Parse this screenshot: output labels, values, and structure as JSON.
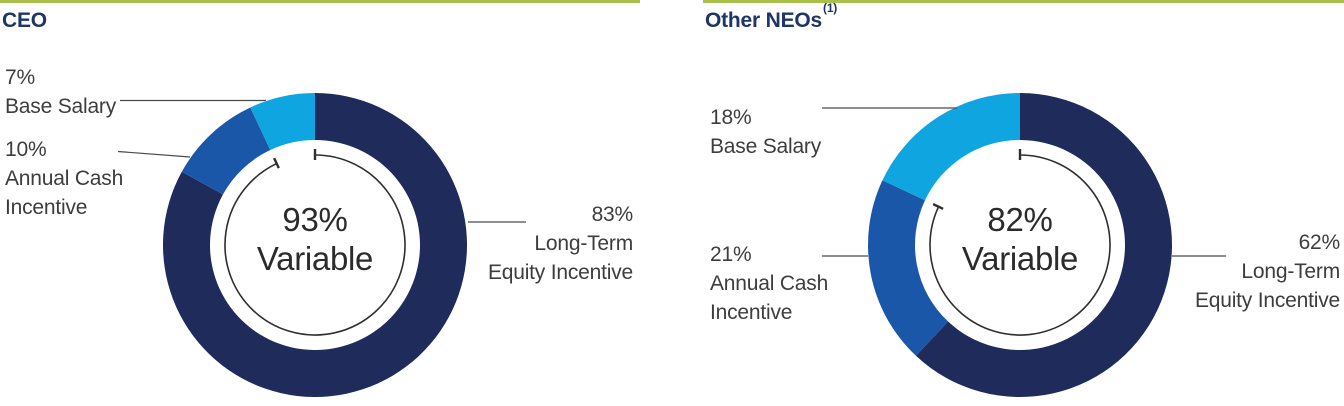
{
  "colors": {
    "rule_green": "#A9C14C",
    "navy": "#1F2B5B",
    "medium_blue": "#1B57A8",
    "light_blue": "#0FA5E0",
    "title_text": "#1E3667",
    "label_text": "#3D3D3D",
    "center_text": "#2B2B2B",
    "leader_line": "#4A4A4A",
    "arc_stroke": "#2E2E2E"
  },
  "chart_data": [
    {
      "type": "pie",
      "variant": "donut",
      "title": "CEO",
      "title_sup": "",
      "legend_position": "callout-labels",
      "slices": [
        {
          "name": "Long-Term Equity Incentive",
          "value": 83,
          "pct_text": "83%",
          "color": "#1F2B5B",
          "line1": "Long-Term",
          "line2": "Equity Incentive"
        },
        {
          "name": "Annual Cash Incentive",
          "value": 10,
          "pct_text": "10%",
          "color": "#1B57A8",
          "line1": "Annual Cash",
          "line2": "Incentive"
        },
        {
          "name": "Base Salary",
          "value": 7,
          "pct_text": "7%",
          "color": "#0FA5E0",
          "line1": "Base Salary",
          "line2": ""
        }
      ],
      "center": {
        "pct_text": "93%",
        "caption": "Variable",
        "variable_pct": 93
      }
    },
    {
      "type": "pie",
      "variant": "donut",
      "title": "Other NEOs",
      "title_sup": "(1)",
      "legend_position": "callout-labels",
      "slices": [
        {
          "name": "Long-Term Equity Incentive",
          "value": 62,
          "pct_text": "62%",
          "color": "#1F2B5B",
          "line1": "Long-Term",
          "line2": "Equity Incentive"
        },
        {
          "name": "Annual Cash Incentive",
          "value": 21,
          "pct_text": "21%",
          "color": "#1B57A8",
          "line1": "Annual Cash",
          "line2": "Incentive"
        },
        {
          "name": "Base Salary",
          "value": 18,
          "pct_text": "18%",
          "color": "#0FA5E0",
          "line1": "Base Salary",
          "line2": ""
        }
      ],
      "center": {
        "pct_text": "82%",
        "caption": "Variable",
        "variable_pct": 82
      }
    }
  ]
}
